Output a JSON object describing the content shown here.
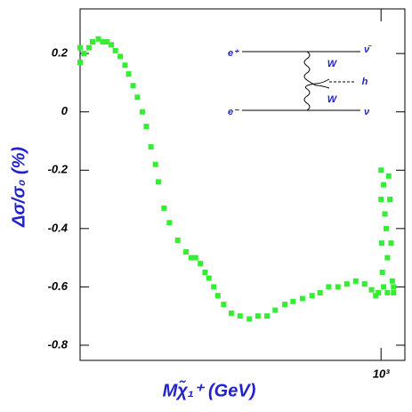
{
  "chart_data": {
    "type": "scatter",
    "x_label": "Mχ̃₁⁺ (GeV)",
    "y_label": "Δσ/σ₀ (%)",
    "xscale": "log",
    "xlim": [
      100,
      1200
    ],
    "ylim": [
      -0.852,
      0.353
    ],
    "xticks": [
      {
        "value": 1000,
        "label": "10³"
      }
    ],
    "yticks": [
      0.2,
      0,
      -0.2,
      -0.4,
      -0.6,
      -0.8
    ],
    "annotations": [
      "e⁺",
      "e⁻",
      "ν̄",
      "ν",
      "W",
      "W",
      "h"
    ],
    "series": [
      {
        "color": "#33ee33",
        "x": [
          100,
          100,
          103,
          107,
          110,
          115,
          119,
          123,
          127,
          131,
          136,
          141,
          145,
          150,
          155,
          161,
          166,
          172,
          178,
          182,
          190,
          198,
          211,
          225,
          234,
          242,
          251,
          260,
          268,
          278,
          287,
          300,
          318,
          340,
          365,
          390,
          418,
          445,
          479,
          510,
          548,
          590,
          627,
          670,
          719,
          770,
          824,
          882,
          930,
          960,
          980,
          1000,
          1000,
          1005,
          1010,
          1020,
          1030,
          1040,
          1050,
          1060,
          1070,
          1080,
          1090,
          1100,
          1100,
          1050,
          1020
        ],
        "values": [
          0.17,
          0.22,
          0.2,
          0.22,
          0.24,
          0.25,
          0.24,
          0.24,
          0.23,
          0.21,
          0.19,
          0.16,
          0.13,
          0.09,
          0.05,
          0.0,
          -0.05,
          -0.12,
          -0.18,
          -0.24,
          -0.33,
          -0.38,
          -0.44,
          -0.48,
          -0.5,
          -0.5,
          -0.52,
          -0.55,
          -0.57,
          -0.6,
          -0.63,
          -0.66,
          -0.69,
          -0.7,
          -0.71,
          -0.7,
          -0.7,
          -0.68,
          -0.66,
          -0.65,
          -0.64,
          -0.63,
          -0.62,
          -0.6,
          -0.6,
          -0.59,
          -0.58,
          -0.59,
          -0.61,
          -0.63,
          -0.62,
          -0.2,
          -0.3,
          -0.45,
          -0.55,
          -0.25,
          -0.35,
          -0.4,
          -0.5,
          -0.22,
          -0.3,
          -0.45,
          -0.58,
          -0.6,
          -0.62,
          -0.62,
          -0.6
        ]
      }
    ]
  }
}
